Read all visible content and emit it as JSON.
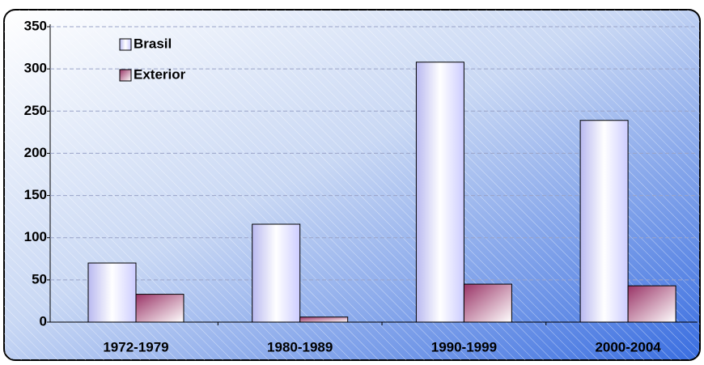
{
  "chart_data": {
    "type": "bar",
    "categories": [
      "1972-1979",
      "1980-1989",
      "1990-1999",
      "2000-2004"
    ],
    "series": [
      {
        "name": "Brasil",
        "color": "#ccccff",
        "values": [
          70,
          116,
          308,
          239
        ]
      },
      {
        "name": "Exterior",
        "color": "#993366",
        "values": [
          33,
          6,
          45,
          43
        ]
      }
    ],
    "ylim": [
      0,
      350
    ],
    "yticks": [
      0,
      50,
      100,
      150,
      200,
      250,
      300,
      350
    ],
    "grid": true,
    "legend": "top-left"
  }
}
